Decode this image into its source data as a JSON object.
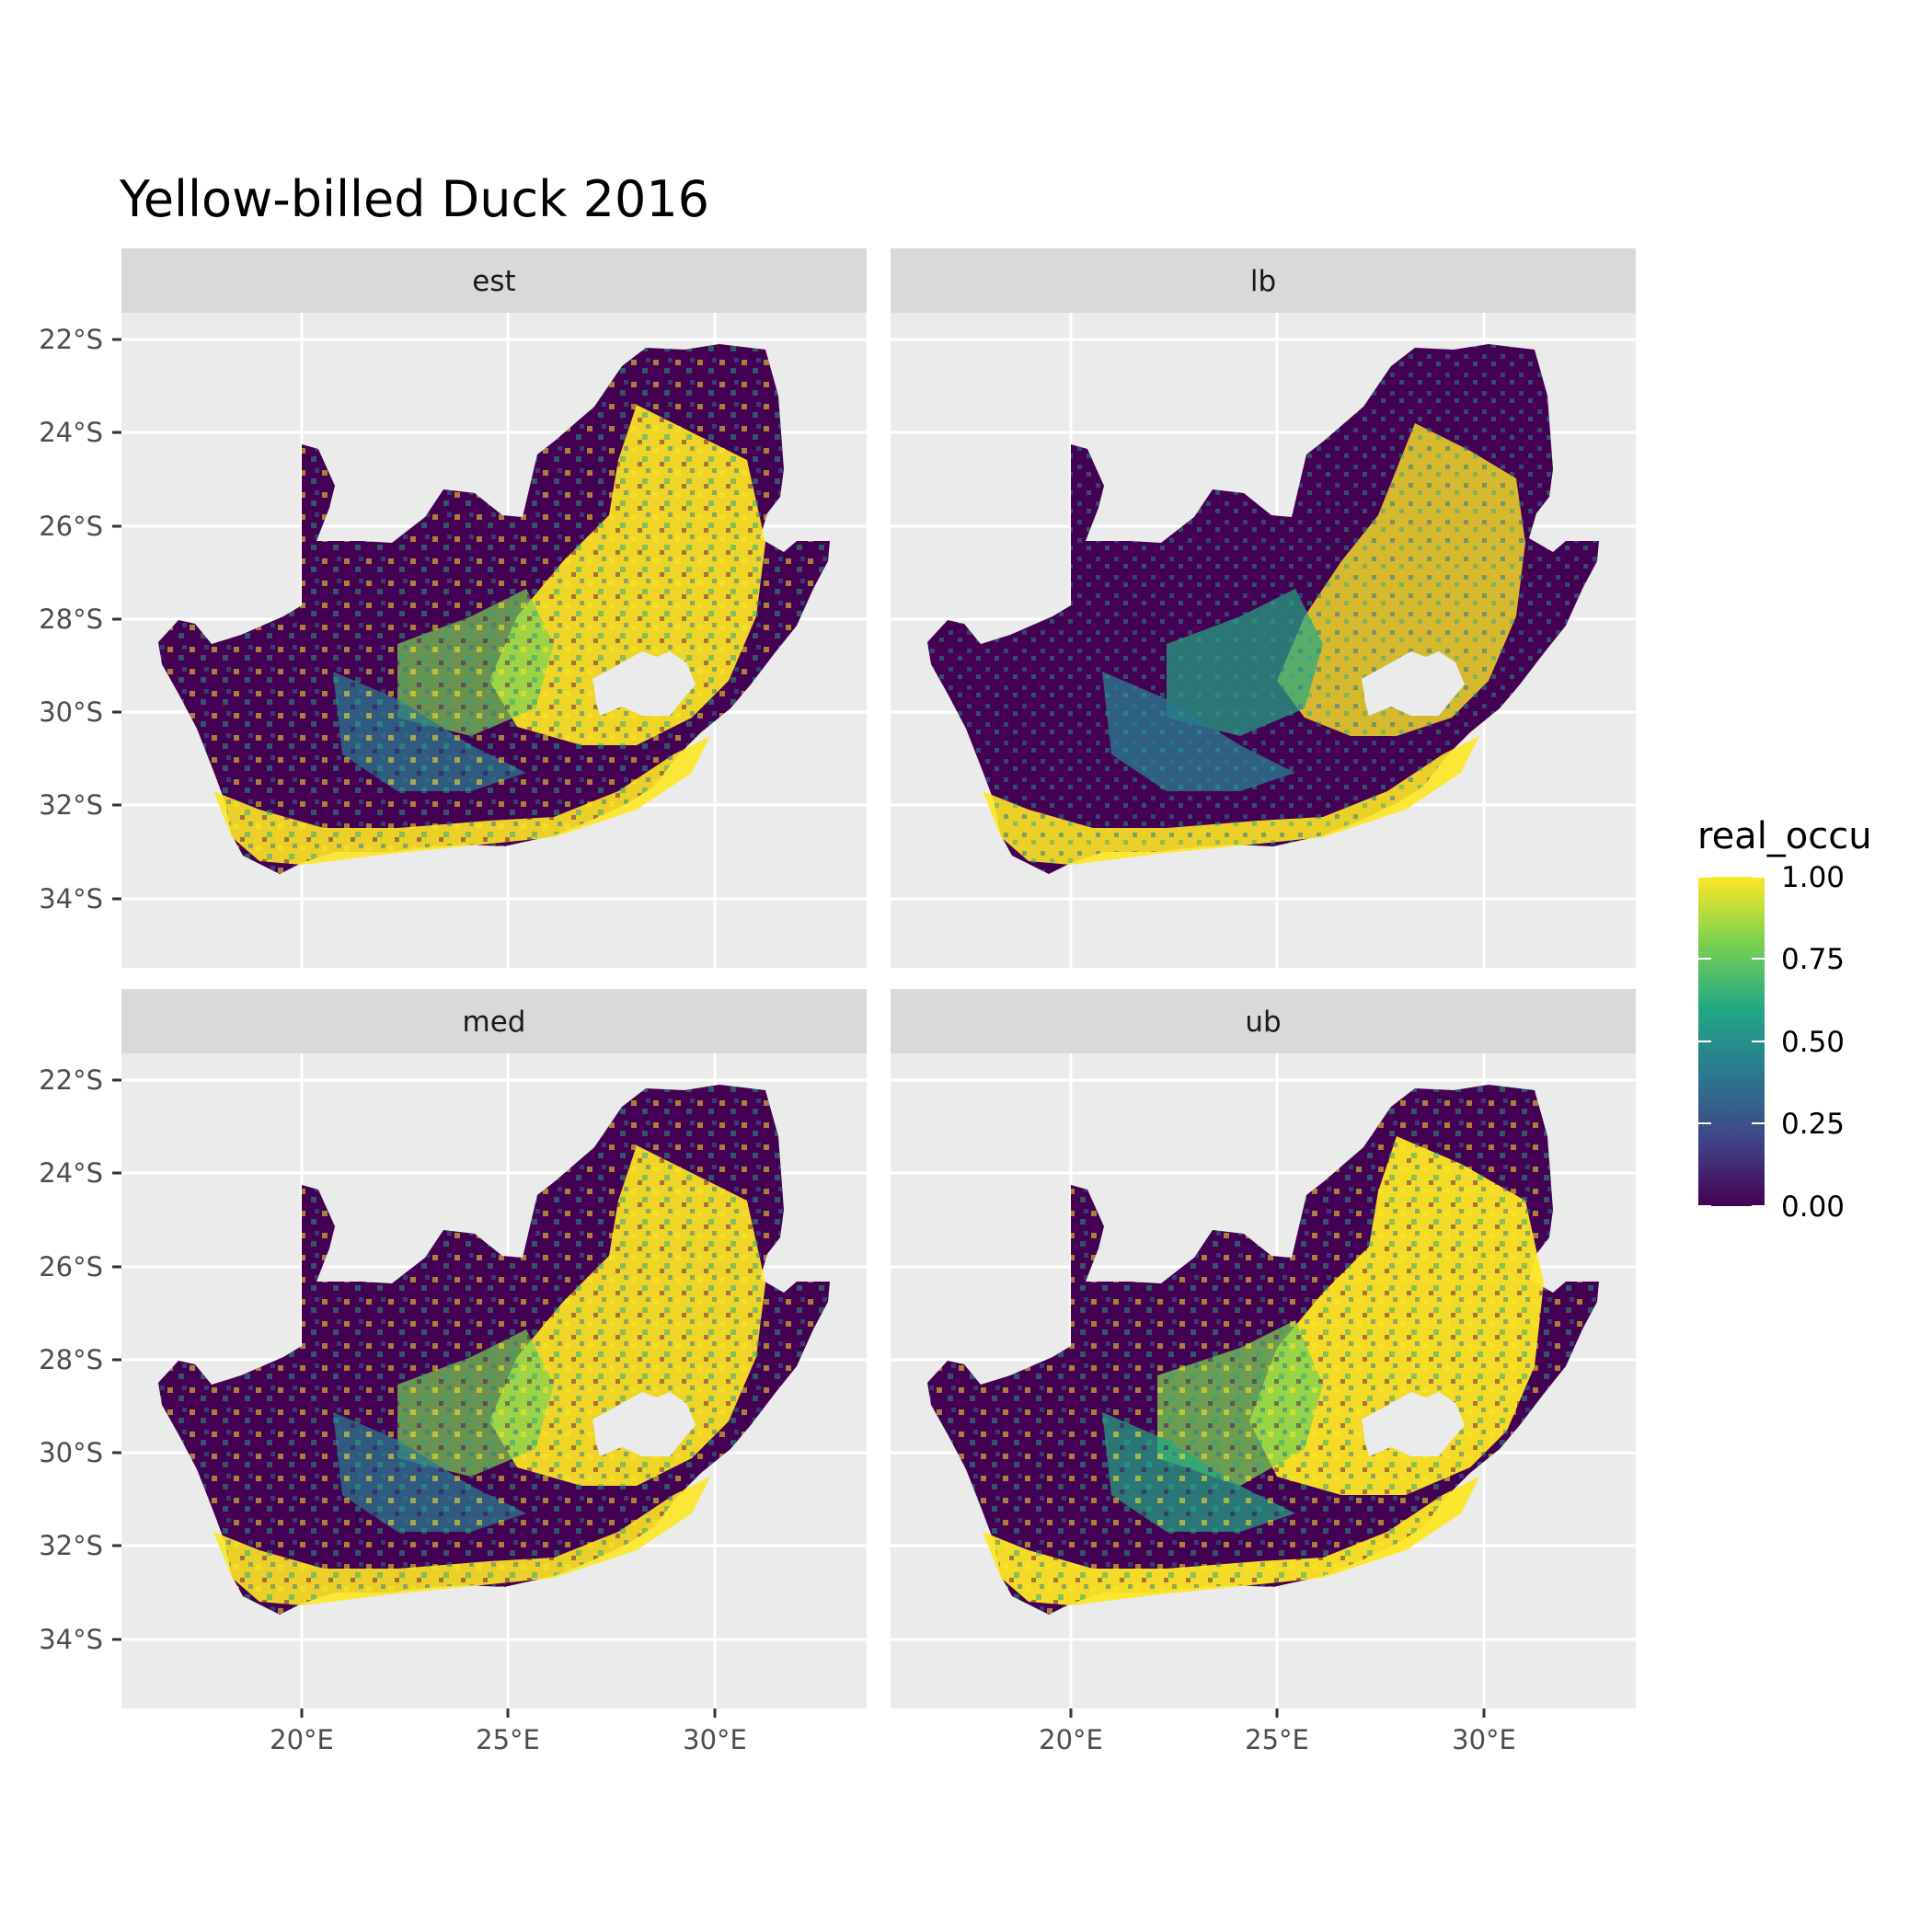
{
  "title": "Yellow-billed Duck 2016",
  "legend": {
    "title": "real_occu",
    "labels": [
      "1.00",
      "0.75",
      "0.50",
      "0.25",
      "0.00"
    ],
    "breaks": [
      1.0,
      0.75,
      0.5,
      0.25,
      0.0
    ],
    "colors": [
      "#fde725",
      "#7ad151",
      "#22a884",
      "#2a788e",
      "#414487",
      "#440154"
    ]
  },
  "axes": {
    "x_ticks": [
      "20°E",
      "25°E",
      "30°E"
    ],
    "y_ticks": [
      "22°S",
      "24°S",
      "26°S",
      "28°S",
      "30°S",
      "32°S",
      "34°S"
    ]
  },
  "panels": [
    {
      "label": "est"
    },
    {
      "label": "lb"
    },
    {
      "label": "med"
    },
    {
      "label": "ub"
    }
  ],
  "colors": {
    "panel_background": "#ebebeb",
    "strip_background": "#d9d9d9",
    "grid": "#ffffff"
  }
}
